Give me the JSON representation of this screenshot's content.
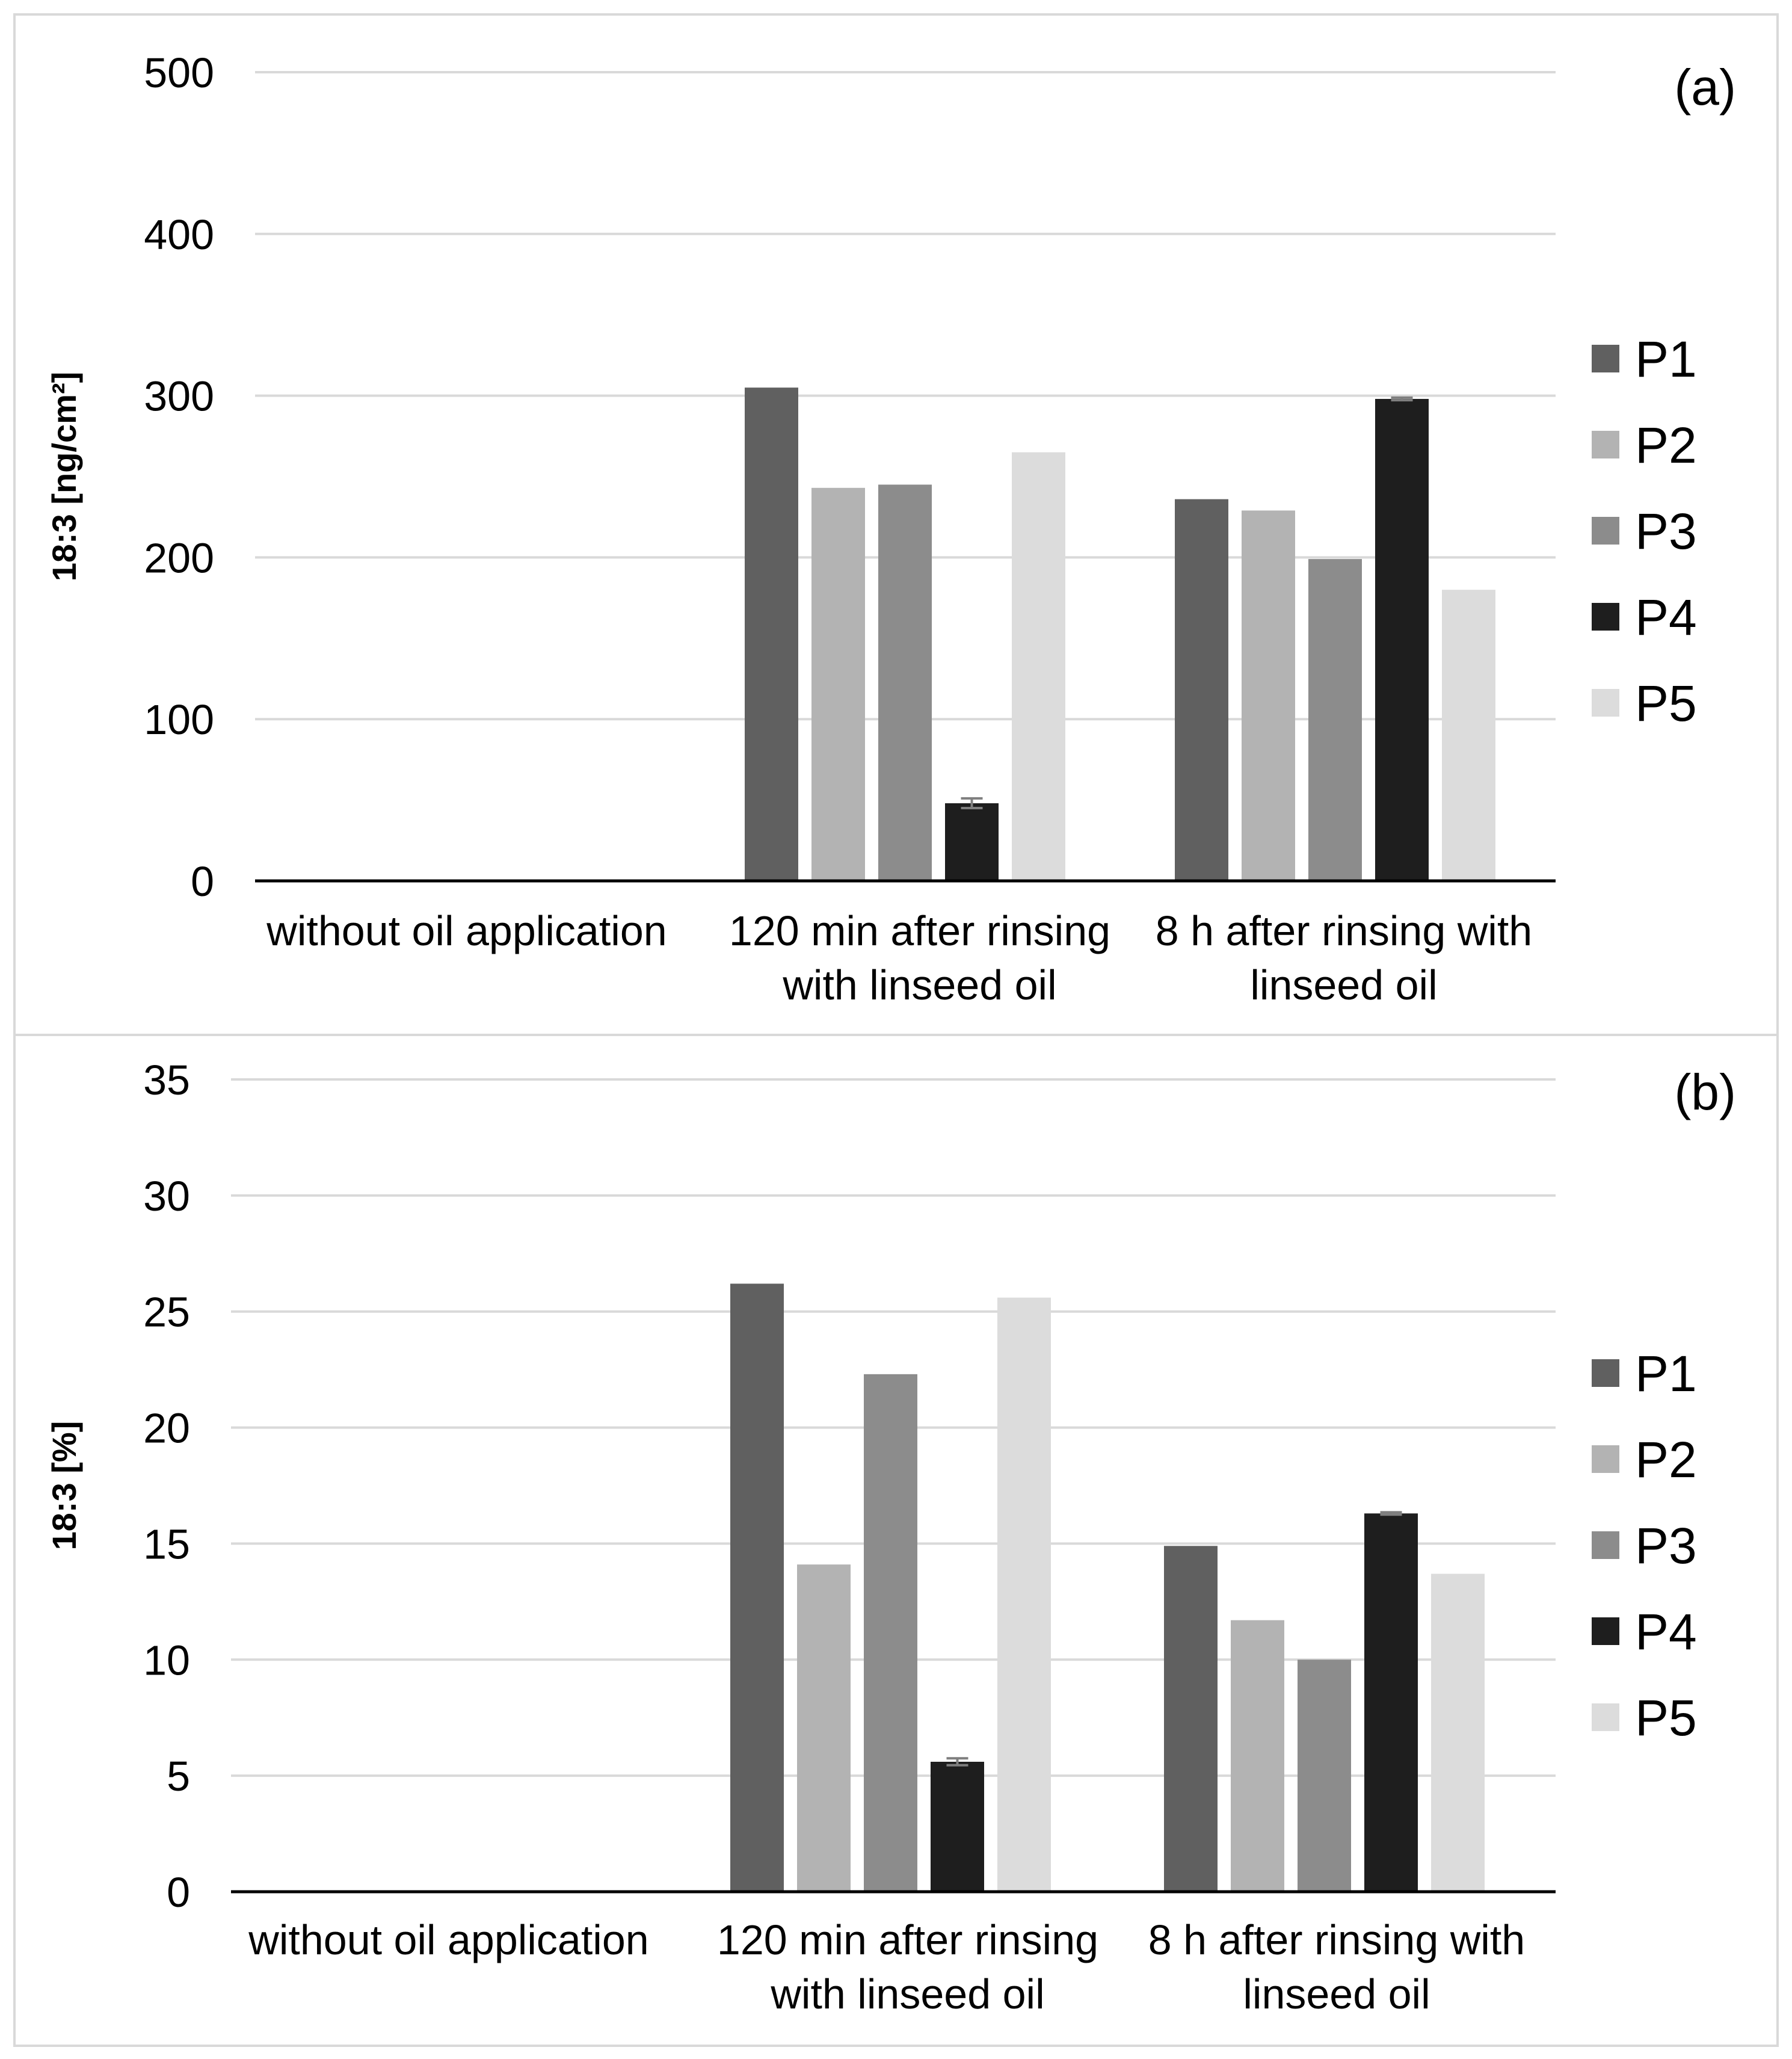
{
  "colors": {
    "P1": "#606060",
    "P2": "#b3b3b3",
    "P3": "#8c8c8c",
    "P4": "#1e1e1e",
    "P5": "#dcdcdc",
    "grid": "#d9d9d9",
    "axis": "#000000",
    "errorbar": "#7f7f7f"
  },
  "chart_data": [
    {
      "type": "bar",
      "panel_label": "(a)",
      "ylabel": "18:3 [ng/cm²]",
      "ylim": [
        0,
        500
      ],
      "yticks": [
        0,
        100,
        200,
        300,
        400,
        500
      ],
      "categories": [
        [
          "without oil application"
        ],
        [
          "120 min after rinsing",
          "with linseed oil"
        ],
        [
          "8 h after rinsing with",
          "linseed oil"
        ]
      ],
      "series": [
        {
          "name": "P1",
          "values": [
            0,
            305,
            236
          ],
          "errors": [
            0,
            0,
            0
          ]
        },
        {
          "name": "P2",
          "values": [
            0,
            243,
            229
          ],
          "errors": [
            0,
            0,
            0
          ]
        },
        {
          "name": "P3",
          "values": [
            0,
            245,
            199
          ],
          "errors": [
            0,
            0,
            0
          ]
        },
        {
          "name": "P4",
          "values": [
            0,
            48,
            298
          ],
          "errors": [
            0,
            3,
            0.8
          ]
        },
        {
          "name": "P5",
          "values": [
            0,
            265,
            180
          ],
          "errors": [
            0,
            0,
            0
          ]
        }
      ],
      "legend": [
        "P1",
        "P2",
        "P3",
        "P4",
        "P5"
      ],
      "grid": true
    },
    {
      "type": "bar",
      "panel_label": "(b)",
      "ylabel": "18:3 [%]",
      "ylim": [
        0,
        35
      ],
      "yticks": [
        0,
        5,
        10,
        15,
        20,
        25,
        30,
        35
      ],
      "categories": [
        [
          "without oil application"
        ],
        [
          "120 min after rinsing",
          "with linseed oil"
        ],
        [
          "8 h after rinsing with",
          "linseed oil"
        ]
      ],
      "series": [
        {
          "name": "P1",
          "values": [
            0,
            26.2,
            14.9
          ],
          "errors": [
            0,
            0,
            0
          ]
        },
        {
          "name": "P2",
          "values": [
            0,
            14.1,
            11.7
          ],
          "errors": [
            0,
            0,
            0
          ]
        },
        {
          "name": "P3",
          "values": [
            0,
            22.3,
            10.0
          ],
          "errors": [
            0,
            0,
            0
          ]
        },
        {
          "name": "P4",
          "values": [
            0,
            5.6,
            16.3
          ],
          "errors": [
            0,
            0.15,
            0.05
          ]
        },
        {
          "name": "P5",
          "values": [
            0,
            25.6,
            13.7
          ],
          "errors": [
            0,
            0,
            0
          ]
        }
      ],
      "legend": [
        "P1",
        "P2",
        "P3",
        "P4",
        "P5"
      ],
      "grid": true
    }
  ]
}
